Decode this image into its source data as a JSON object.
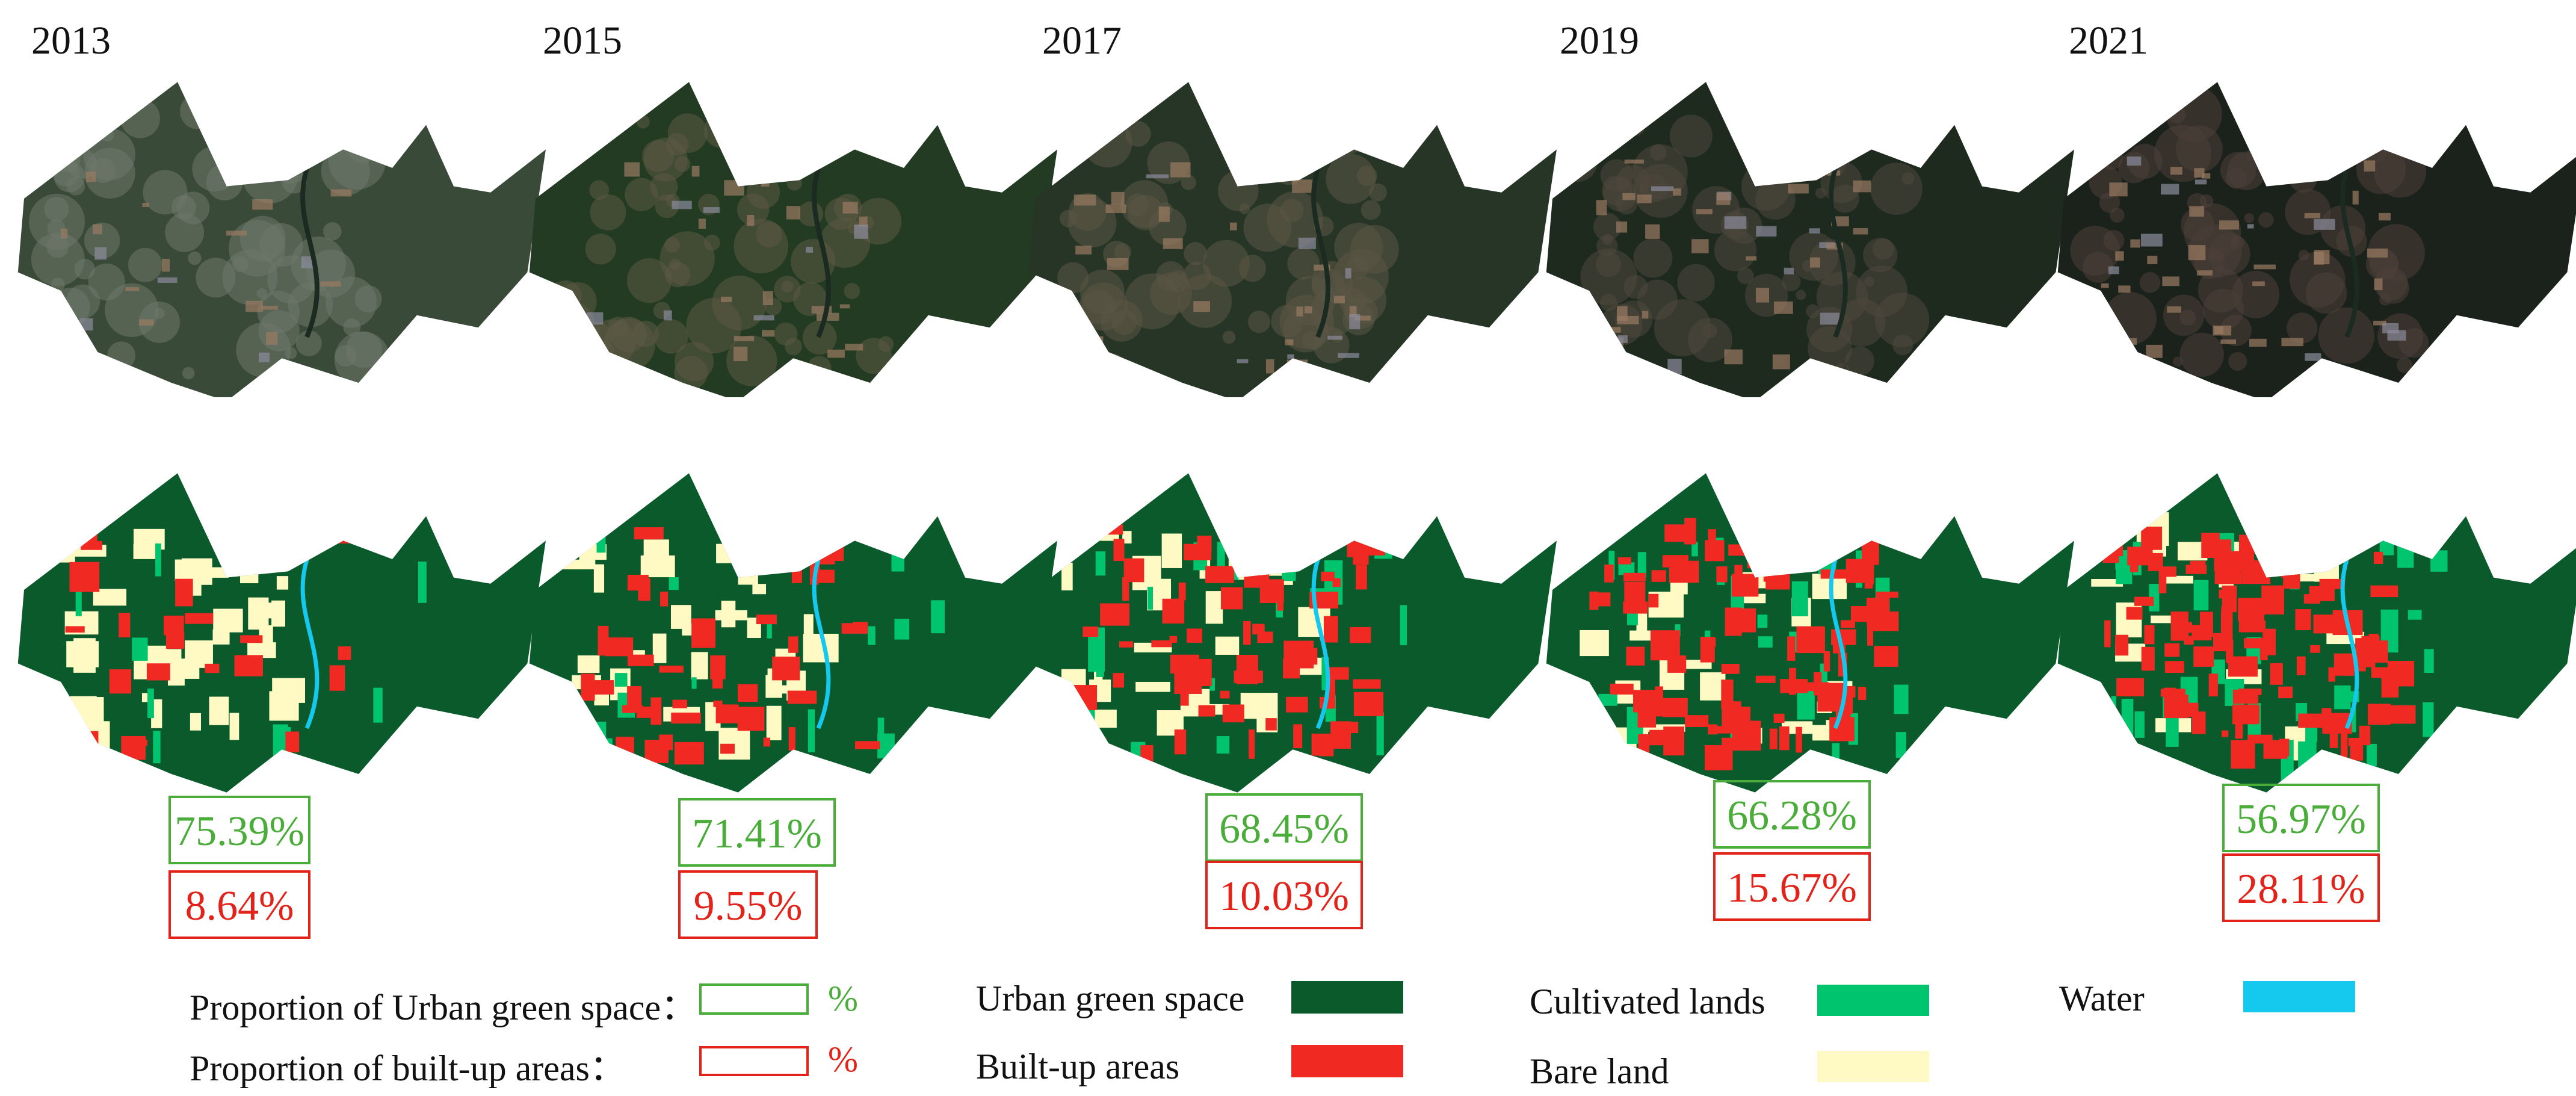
{
  "years": [
    "2013",
    "2015",
    "2017",
    "2019",
    "2021"
  ],
  "proportions": [
    {
      "green": "75.39%",
      "built": "8.64%"
    },
    {
      "green": "71.41%",
      "built": "9.55%"
    },
    {
      "green": "68.45%",
      "built": "10.03%"
    },
    {
      "green": "66.28%",
      "built": "15.67%"
    },
    {
      "green": "56.97%",
      "built": "28.11%"
    }
  ],
  "legend": {
    "green_prop_label": "Proportion of Urban green space：",
    "built_prop_label": "Proportion of built-up areas：",
    "percent": "%",
    "classes": [
      {
        "label": "Urban green space",
        "color": "#0b5a2c"
      },
      {
        "label": "Built-up areas",
        "color": "#f02a22"
      },
      {
        "label": "Cultivated lands",
        "color": "#00c46e"
      },
      {
        "label": "Bare land",
        "color": "#fffac4"
      },
      {
        "label": "Water",
        "color": "#14c8ee"
      }
    ]
  },
  "colors": {
    "green_text": "#4aad3a",
    "built_text": "#e32219"
  }
}
